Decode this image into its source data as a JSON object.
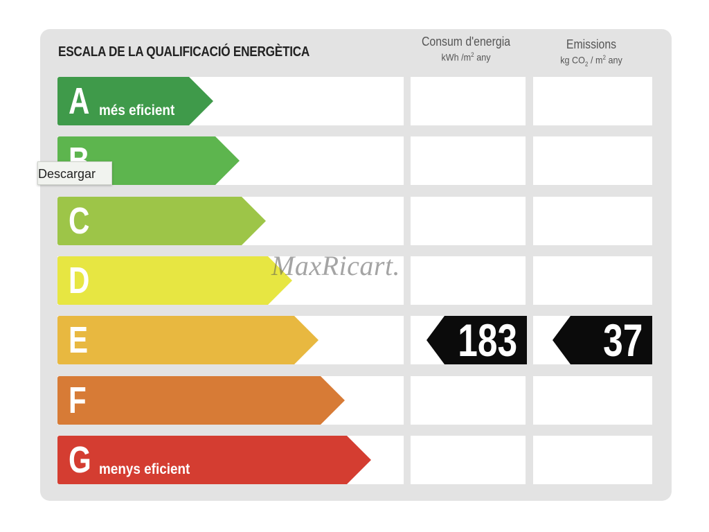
{
  "title": "ESCALA DE LA QUALIFICACIÓ ENERGÈTICA",
  "columns": {
    "consumption": {
      "label": "Consum d'energia",
      "unit_a": "kWh /m",
      "unit_sup": "2",
      "unit_b": " any"
    },
    "emissions": {
      "label": "Emissions",
      "unit_a": "kg CO",
      "unit_sub": "2",
      "unit_b": " / m",
      "unit_sup": "2",
      "unit_c": " any"
    }
  },
  "classes": [
    {
      "letter": "A",
      "sublabel": "més eficient",
      "color": "#3f9a4a"
    },
    {
      "letter": "B",
      "sublabel": "",
      "color": "#5db54e"
    },
    {
      "letter": "C",
      "sublabel": "",
      "color": "#9dc548"
    },
    {
      "letter": "D",
      "sublabel": "",
      "color": "#e7e642"
    },
    {
      "letter": "E",
      "sublabel": "",
      "color": "#e8b840"
    },
    {
      "letter": "F",
      "sublabel": "",
      "color": "#d77b36"
    },
    {
      "letter": "G",
      "sublabel": "menys eficient",
      "color": "#d43d31"
    }
  ],
  "rating": {
    "class": "E",
    "consumption_value": "183",
    "emissions_value": "37"
  },
  "watermark": "MaxRicart.",
  "tooltip": "Descargar"
}
